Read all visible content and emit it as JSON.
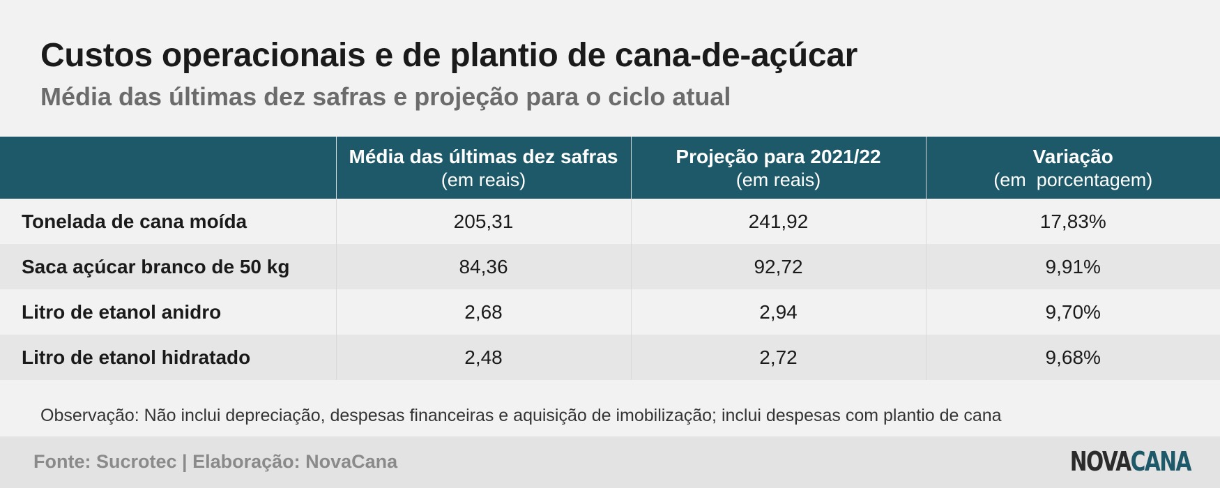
{
  "header": {
    "title": "Custos operacionais e de plantio de cana-de-açúcar",
    "subtitle": "Média das últimas dez safras e projeção para o ciclo atual"
  },
  "chart_data": {
    "type": "table",
    "columns": [
      {
        "label": "",
        "unit": ""
      },
      {
        "label": "Média das últimas dez safras",
        "unit": "(em reais)"
      },
      {
        "label": "Projeção para 2021/22",
        "unit": "(em reais)"
      },
      {
        "label": "Variação",
        "unit": "(em  porcentagem)"
      }
    ],
    "rows": [
      {
        "label": "Tonelada de cana moída",
        "values": [
          "205,31",
          "241,92",
          "17,83%"
        ]
      },
      {
        "label": "Saca açúcar branco de 50 kg",
        "values": [
          "84,36",
          "92,72",
          "9,91%"
        ]
      },
      {
        "label": "Litro de etanol anidro",
        "values": [
          "2,68",
          "2,94",
          "9,70%"
        ]
      },
      {
        "label": "Litro de etanol hidratado",
        "values": [
          "2,48",
          "2,72",
          "9,68%"
        ]
      }
    ]
  },
  "note": "Observação: Não inclui depreciação, despesas financeiras e aquisição de imobilização; inclui despesas com plantio de cana",
  "footer": {
    "source": "Fonte: Sucrotec | Elaboração: NovaCana",
    "logo_part1": "NOVA",
    "logo_part2": "CANA"
  },
  "colors": {
    "header_bg": "#1e596a",
    "row_light": "#f2f2f2",
    "row_dark": "#e6e6e6",
    "footer_bg": "#e3e3e3",
    "brand": "#1e596a"
  }
}
